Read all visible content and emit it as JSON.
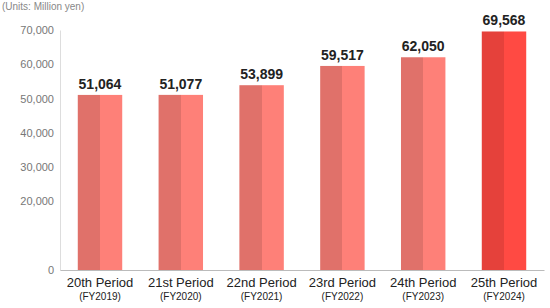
{
  "chart_data": {
    "type": "bar",
    "y_label": "(Units: Million yen)",
    "categories": [
      "20th Period\n(FY2019)",
      "21st Period\n(FY2020)",
      "22nd Period\n(FY2021)",
      "23rd Period\n(FY2022)",
      "24th Period\n(FY2023)",
      "25th Period\n(FY2024)"
    ],
    "values": [
      51064,
      51077,
      53899,
      59517,
      62050,
      69568
    ],
    "value_labels": [
      "51,064",
      "51,077",
      "53,899",
      "59,517",
      "62,050",
      "69,568"
    ],
    "colors": [
      "#e0716a",
      "#e0716a",
      "#e0716a",
      "#e0716a",
      "#e0716a",
      "#e5413b"
    ],
    "ylim": [
      0,
      70000
    ],
    "yticks": [
      0,
      {
        "value": 20000,
        "label": "20,000"
      },
      {
        "value": 30000,
        "label": "30,000"
      },
      {
        "value": 40000,
        "label": "40,000"
      },
      {
        "value": 50000,
        "label": "50,000"
      },
      {
        "value": 60000,
        "label": "60,000"
      },
      {
        "value": 70000,
        "label": "70,000"
      }
    ],
    "grid": false,
    "data_labels": true
  }
}
